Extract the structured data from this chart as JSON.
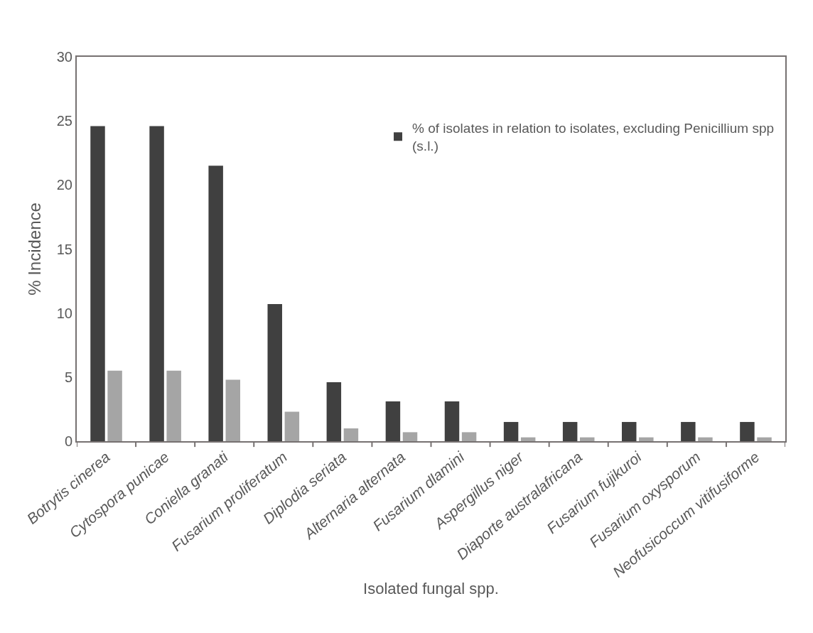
{
  "chart_data": {
    "type": "bar",
    "xlabel": "Isolated fungal spp.",
    "ylabel": "% Incidence",
    "categories": [
      "Botrytis cinerea",
      "Cytospora punicae",
      "Coniella granati",
      "Fusarium proliferatum",
      "Diplodia seriata",
      "Alternaria alternata",
      "Fusarium dlamini",
      "Aspergillus niger",
      "Diaporte australafricana",
      "Fusarium fujikuroi",
      "Fusarium oxysporum",
      "Neofusicoccum vitifusiforme"
    ],
    "series": [
      {
        "name": "% of isolates in relation to isolates, excluding Penicillium spp (s.l.)",
        "color": "#404040",
        "values": [
          24.6,
          24.6,
          21.5,
          10.7,
          4.6,
          3.1,
          3.1,
          1.5,
          1.5,
          1.5,
          1.5,
          1.5
        ]
      },
      {
        "color": "#a5a5a5",
        "values": [
          5.5,
          5.5,
          4.8,
          2.3,
          1.0,
          0.7,
          0.7,
          0.3,
          0.3,
          0.3,
          0.3,
          0.3
        ]
      }
    ],
    "ylim": [
      0,
      30
    ],
    "yticks": [
      0,
      5,
      10,
      15,
      20,
      25,
      30
    ],
    "legend": "top right"
  }
}
